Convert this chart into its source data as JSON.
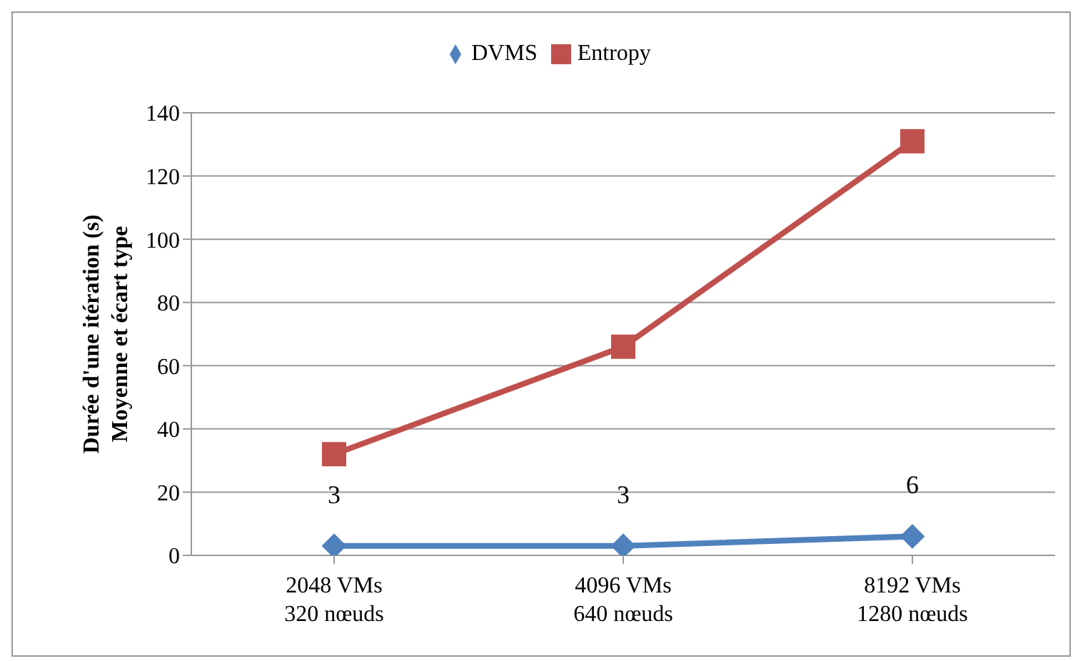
{
  "chart_data": {
    "type": "line",
    "ylabel": "Durée d'une itération (s)\nMoyenne et écart type",
    "categories": [
      "2048 VMs\n320 nœuds",
      "4096 VMs\n640 nœuds",
      "8192 VMs\n1280 nœuds"
    ],
    "series": [
      {
        "name": "DVMS",
        "color": "#4f81bd",
        "marker": "diamond",
        "values": [
          3,
          3,
          6
        ],
        "value_labels": [
          "3",
          "3",
          "6"
        ]
      },
      {
        "name": "Entropy",
        "color": "#c0504d",
        "marker": "square",
        "values": [
          32,
          66,
          131
        ]
      }
    ],
    "ylim": [
      0,
      140
    ],
    "yticks": [
      0,
      20,
      40,
      60,
      80,
      100,
      120,
      140
    ],
    "grid": "y",
    "legend": "top",
    "line_style": "solid"
  }
}
